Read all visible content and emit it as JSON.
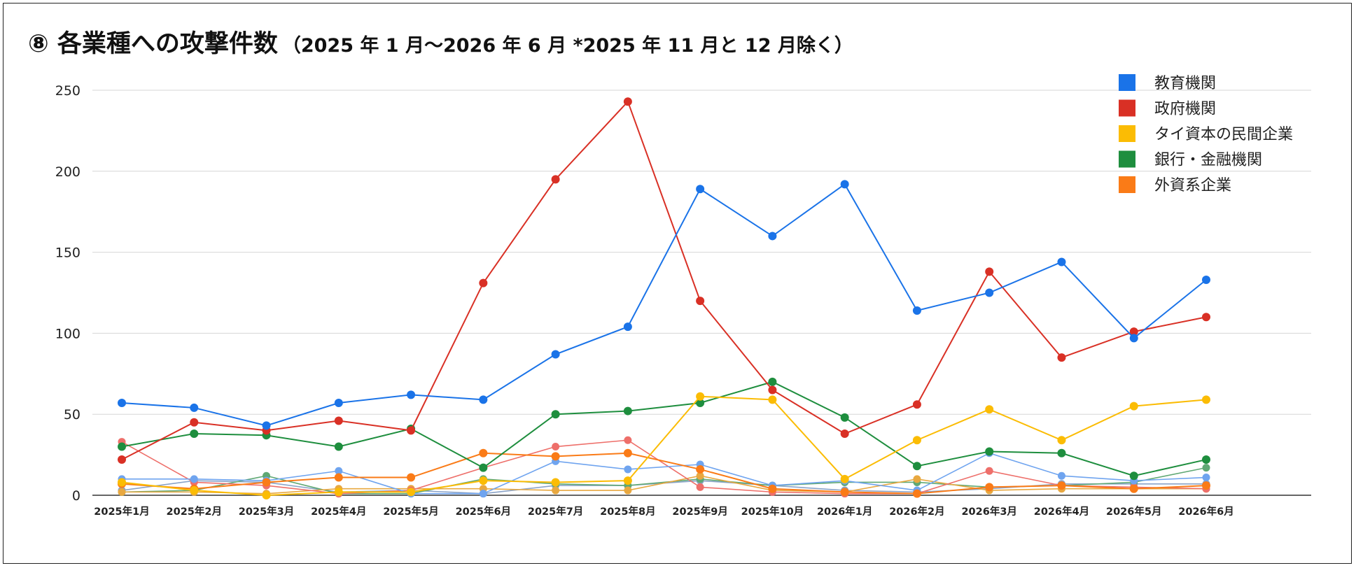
{
  "title": {
    "main": "⑧ 各業種への攻撃件数",
    "sub": "（2025 年 1 月～2026 年 6 月 *2025 年 11 月と 12 月除く）"
  },
  "chart_data": {
    "type": "line",
    "categories": [
      "2025年1月",
      "2025年2月",
      "2025年3月",
      "2025年4月",
      "2025年5月",
      "2025年6月",
      "2025年7月",
      "2025年8月",
      "2025年9月",
      "2025年10月",
      "2026年1月",
      "2026年2月",
      "2026年3月",
      "2026年4月",
      "2026年5月",
      "2026年6月"
    ],
    "ylim": [
      0,
      250
    ],
    "yticks": [
      0,
      50,
      100,
      150,
      200,
      250
    ],
    "grid": true,
    "legend_position": "top-right",
    "series": [
      {
        "name": "教育機関",
        "color": "#1a73e8",
        "values": [
          57,
          54,
          43,
          57,
          62,
          59,
          87,
          104,
          189,
          160,
          192,
          114,
          125,
          144,
          97,
          133
        ]
      },
      {
        "name": "政府機関",
        "color": "#d93025",
        "values": [
          22,
          45,
          40,
          46,
          40,
          131,
          195,
          243,
          120,
          65,
          38,
          56,
          138,
          85,
          101,
          110
        ]
      },
      {
        "name": "タイ資本の民間企業",
        "color": "#fbbc04",
        "values": [
          8,
          3,
          0,
          2,
          2,
          9,
          8,
          9,
          61,
          59,
          10,
          34,
          53,
          34,
          55,
          59
        ]
      },
      {
        "name": "銀行・金融機関",
        "color": "#1e8e3e",
        "values": [
          30,
          38,
          37,
          30,
          41,
          17,
          50,
          52,
          57,
          70,
          48,
          18,
          27,
          26,
          12,
          22
        ]
      },
      {
        "name": "外資系企業",
        "color": "#fa7b17",
        "values": [
          7,
          4,
          8,
          11,
          11,
          26,
          24,
          26,
          16,
          4,
          2,
          1,
          5,
          6,
          4,
          6
        ]
      },
      {
        "name": "",
        "color": "#6fa4ef",
        "values": [
          10,
          10,
          9,
          15,
          1,
          1,
          21,
          16,
          19,
          6,
          9,
          3,
          26,
          12,
          9,
          11
        ]
      },
      {
        "name": "",
        "color": "#ee6f6a",
        "values": [
          33,
          8,
          6,
          1,
          3,
          17,
          30,
          34,
          5,
          2,
          1,
          1,
          15,
          6,
          5,
          4
        ]
      },
      {
        "name": "",
        "color": "#e8a840",
        "values": [
          2,
          2,
          1,
          4,
          4,
          4,
          3,
          3,
          12,
          3,
          2,
          10,
          3,
          4,
          4,
          4
        ]
      },
      {
        "name": "",
        "color": "#5fa874",
        "values": [
          2,
          3,
          12,
          1,
          1,
          10,
          7,
          6,
          10,
          6,
          8,
          8,
          5,
          6,
          8,
          17
        ]
      },
      {
        "name": "",
        "color": "#8aa3c8",
        "values": [
          3,
          9,
          8,
          2,
          3,
          1,
          6,
          6,
          9,
          6,
          3,
          2,
          4,
          7,
          7,
          7
        ]
      }
    ]
  }
}
